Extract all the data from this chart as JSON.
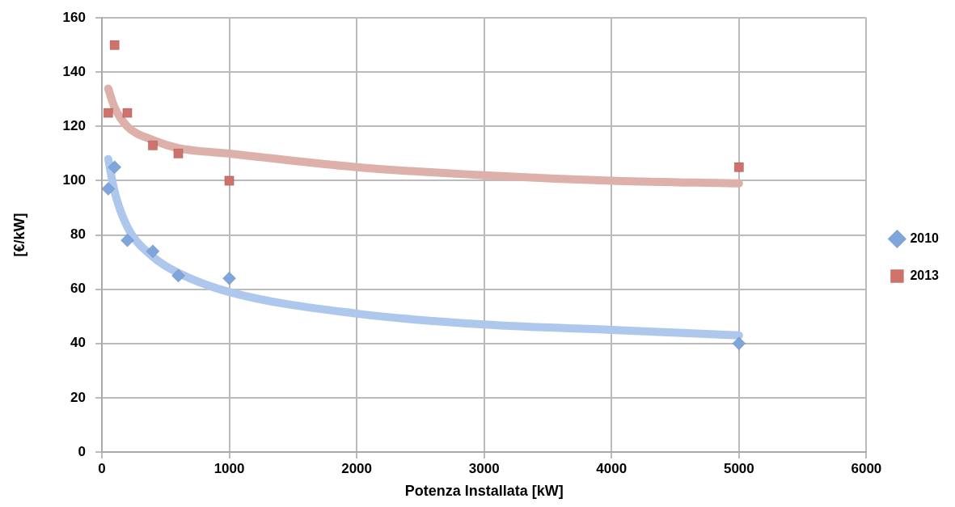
{
  "chart_data": {
    "type": "scatter",
    "xlabel": "Potenza Installata [kW]",
    "ylabel": "[€/kW]",
    "xlim": [
      0,
      6000
    ],
    "xticks": [
      0,
      1000,
      2000,
      3000,
      4000,
      5000,
      6000
    ],
    "ylim": [
      0,
      160
    ],
    "yticks": [
      0,
      20,
      40,
      60,
      80,
      100,
      120,
      140,
      160
    ],
    "grid": true,
    "legend": "right",
    "series": [
      {
        "name": "2010",
        "color": "#7ea6dc",
        "marker": "diamond",
        "x": [
          50,
          100,
          200,
          400,
          600,
          1000,
          5000
        ],
        "values": [
          97,
          105,
          78,
          74,
          65,
          64,
          40
        ]
      },
      {
        "name": "2013",
        "color": "#d0726b",
        "marker": "square",
        "x": [
          50,
          100,
          200,
          400,
          600,
          1000,
          5000
        ],
        "values": [
          125,
          150,
          125,
          113,
          110,
          100,
          105
        ]
      },
      {
        "type": "line",
        "color": "#adc8ec",
        "marker": "none",
        "x": [
          50,
          100,
          200,
          400,
          600,
          1000,
          2000,
          3000,
          4000,
          5000
        ],
        "values": [
          108,
          96,
          83,
          72,
          66,
          59,
          51,
          47,
          45,
          43
        ]
      },
      {
        "type": "line",
        "color": "#ddb0aa",
        "marker": "none",
        "x": [
          50,
          100,
          200,
          400,
          600,
          1000,
          2000,
          3000,
          4000,
          5000
        ],
        "values": [
          134,
          127,
          120,
          115,
          112,
          110,
          105,
          102,
          100,
          99
        ]
      }
    ]
  }
}
